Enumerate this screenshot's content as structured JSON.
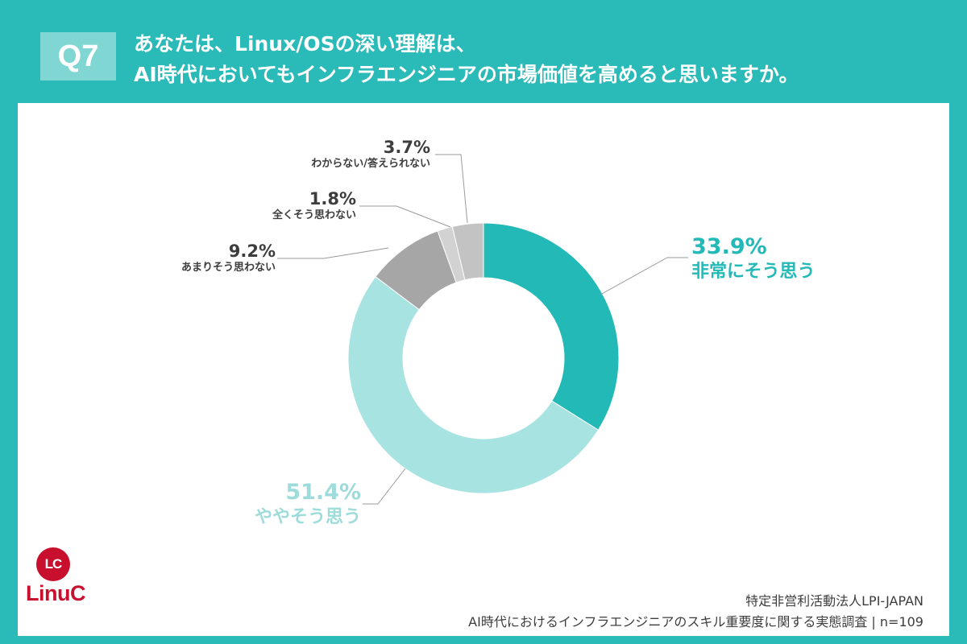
{
  "header": {
    "badge": "Q7",
    "title_line1": "あなたは、Linux/OSの深い理解は、",
    "title_line2": "AI時代においてもインフラエンジニアの市場価値を高めると思いますか。"
  },
  "colors": {
    "header_bg": "#2abab8",
    "series": [
      "#22b9b7",
      "#a7e3e1",
      "#a6a6a6",
      "#d2d2d2",
      "#c3c3c3"
    ]
  },
  "chart_data": {
    "type": "pie",
    "donut": true,
    "title": "",
    "categories": [
      "非常にそう思う",
      "ややそう思う",
      "あまりそう思わない",
      "全くそう思わない",
      "わからない/答えられない"
    ],
    "values": [
      33.9,
      51.4,
      9.2,
      1.8,
      3.7
    ],
    "value_labels": [
      "33.9%",
      "51.4%",
      "9.2%",
      "1.8%",
      "3.7%"
    ]
  },
  "logo": {
    "mark": "LC",
    "word": "LinuC"
  },
  "source": {
    "line1": "特定非営利活動法人LPI-JAPAN",
    "line2": "AI時代におけるインフラエンジニアのスキル重要度に関する実態調査 | n=109"
  }
}
